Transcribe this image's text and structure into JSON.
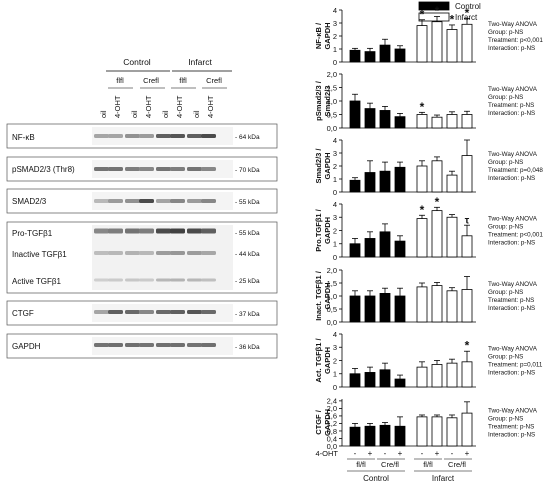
{
  "blots": {
    "group_headers": [
      "Control",
      "Infarct"
    ],
    "subgroup_headers": [
      "flfl",
      "Crefl",
      "flfl",
      "Crefl"
    ],
    "lane_labels": [
      "oil",
      "4-OHT",
      "oil",
      "4-OHT",
      "oil",
      "4-OHT",
      "oil",
      "4-OHT"
    ],
    "panels": [
      {
        "name": "NF-κB",
        "kda": [
          "- 64 kDa"
        ]
      },
      {
        "name": "pSMAD2/3 (Thr8)",
        "kda": [
          "- 70 kDa"
        ]
      },
      {
        "name": "SMAD2/3",
        "kda": [
          "- 55 kDa"
        ]
      },
      {
        "name": "Pro-TGFβ1",
        "sub_labels": [
          "Inactive TGFβ1",
          "Active TGFβ1"
        ],
        "kda": [
          "- 55 kDa",
          "- 44 kDa",
          "- 25 kDa"
        ]
      },
      {
        "name": "CTGF",
        "kda": [
          "- 37 kDa"
        ]
      },
      {
        "name": "GAPDH",
        "kda": [
          "- 36 kDa"
        ]
      }
    ]
  },
  "legend": {
    "items": [
      {
        "label": "Control",
        "color": "#000000"
      },
      {
        "label": "Infarct",
        "color": "#ffffff"
      }
    ]
  },
  "chart_data": [
    {
      "type": "bar",
      "ylabel": "NF-κB / GAPDH",
      "ylim": [
        0,
        4
      ],
      "ticks": [
        "0",
        "1",
        "2",
        "3",
        "4"
      ],
      "values": [
        0.9,
        0.8,
        1.3,
        1.0,
        2.8,
        3.1,
        2.5,
        2.9
      ],
      "errors": [
        0.15,
        0.25,
        0.45,
        0.25,
        0.45,
        0.4,
        0.35,
        0.45
      ],
      "marks": [
        "",
        "",
        "",
        "",
        "*",
        "*",
        "*",
        "*"
      ],
      "stats": [
        "Two-Way ANOVA",
        "Group: p-NS",
        "Treatment: p<0,001",
        "Interaction: p-NS"
      ]
    },
    {
      "type": "bar",
      "ylabel": "pSmad2/3 / Smad2/3",
      "ylim": [
        0,
        2.0
      ],
      "ticks": [
        "0,0",
        "0,5",
        "1,0",
        "1,5",
        "2,0"
      ],
      "values": [
        1.0,
        0.72,
        0.65,
        0.42,
        0.5,
        0.4,
        0.5,
        0.5
      ],
      "errors": [
        0.25,
        0.2,
        0.15,
        0.12,
        0.08,
        0.08,
        0.1,
        0.12
      ],
      "marks": [
        "",
        "",
        "",
        "",
        "*",
        "",
        "",
        ""
      ],
      "stats": [
        "Two-Way ANOVA",
        "Group: p-NS",
        "Treatment: p-NS",
        "Interaction: p-NS"
      ]
    },
    {
      "type": "bar",
      "ylabel": "Smad2/3 / GAPDH",
      "ylim": [
        0,
        4
      ],
      "ticks": [
        "0",
        "1",
        "2",
        "3",
        "4"
      ],
      "values": [
        0.9,
        1.5,
        1.6,
        1.9,
        2.0,
        2.4,
        1.3,
        2.8
      ],
      "errors": [
        0.2,
        0.9,
        0.7,
        0.4,
        0.4,
        0.3,
        0.3,
        1.2
      ],
      "marks": [
        "",
        "",
        "",
        "",
        "",
        "",
        "",
        ""
      ],
      "stats": [
        "Two-Way ANOVA",
        "Group: p-NS",
        "Treatment: p=0,048",
        "Interaction: p-NS"
      ]
    },
    {
      "type": "bar",
      "ylabel": "Pro.TGFβ1 / GAPDH",
      "ylim": [
        0,
        4
      ],
      "ticks": [
        "0",
        "1",
        "2",
        "3",
        "4"
      ],
      "values": [
        1.0,
        1.4,
        1.9,
        1.2,
        2.9,
        3.5,
        3.0,
        1.6
      ],
      "errors": [
        0.4,
        0.5,
        0.6,
        0.4,
        0.25,
        0.25,
        0.2,
        0.8
      ],
      "marks": [
        "",
        "",
        "",
        "",
        "*",
        "*",
        "",
        "τ"
      ],
      "stats": [
        "Two-Way ANOVA",
        "Group: p-NS",
        "Treatment: p<0,001",
        "Interaction: p-NS"
      ]
    },
    {
      "type": "bar",
      "ylabel": "Inact. TGFβ1 / GAPDH",
      "ylim": [
        0,
        2.0
      ],
      "ticks": [
        "0,0",
        "0,5",
        "1,0",
        "1,5",
        "2,0"
      ],
      "values": [
        1.0,
        1.0,
        1.1,
        1.0,
        1.35,
        1.4,
        1.2,
        1.25
      ],
      "errors": [
        0.2,
        0.2,
        0.2,
        0.3,
        0.15,
        0.12,
        0.12,
        0.5
      ],
      "marks": [
        "",
        "",
        "",
        "",
        "",
        "",
        "",
        ""
      ],
      "stats": [
        "Two-Way ANOVA",
        "Group: p-NS",
        "Treatment: p-NS",
        "Interaction: p-NS"
      ]
    },
    {
      "type": "bar",
      "ylabel": "Act. TGFβ1 / GAPDH",
      "ylim": [
        0,
        4
      ],
      "ticks": [
        "0",
        "1",
        "2",
        "3",
        "4"
      ],
      "values": [
        1.0,
        1.1,
        1.3,
        0.6,
        1.5,
        1.7,
        1.8,
        1.9
      ],
      "errors": [
        0.4,
        0.4,
        0.5,
        0.3,
        0.4,
        0.3,
        0.3,
        0.8
      ],
      "marks": [
        "",
        "",
        "",
        "",
        "",
        "",
        "",
        "*"
      ],
      "stats": [
        "Two-Way ANOVA",
        "Group: p-NS",
        "Treatment: p=0,011",
        "Interaction: p-NS"
      ]
    },
    {
      "type": "bar",
      "ylabel": "CTGF / GAPDH",
      "ylim": [
        0,
        2.5
      ],
      "ticks": [
        "0,0",
        "0,4",
        "0,8",
        "1,2",
        "1,6",
        "2,0",
        "2,4"
      ],
      "values": [
        1.0,
        1.05,
        1.1,
        1.05,
        1.55,
        1.55,
        1.5,
        1.75
      ],
      "errors": [
        0.2,
        0.15,
        0.15,
        0.5,
        0.1,
        0.1,
        0.15,
        0.6
      ],
      "marks": [
        "",
        "",
        "",
        "",
        "",
        "",
        "",
        ""
      ],
      "stats": [
        "Two-Way ANOVA",
        "Group: p-NS",
        "Treatment: p-NS",
        "Interaction: p-NS"
      ]
    }
  ],
  "x_axis": {
    "row_label": "4-OHT",
    "treatment_signs": [
      "-",
      "+",
      "-",
      "+",
      "-",
      "+",
      "-",
      "+"
    ],
    "genotype_labels": [
      "fl/fl",
      "Cre/fl",
      "fl/fl",
      "Cre/fl"
    ],
    "group_labels": [
      "Control",
      "Infarct"
    ]
  }
}
